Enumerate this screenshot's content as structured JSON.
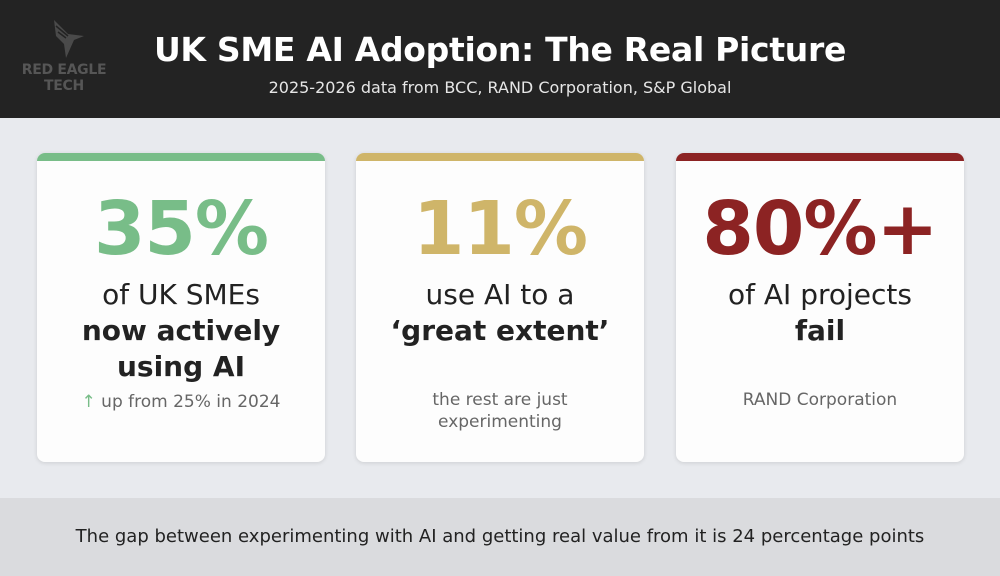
{
  "header": {
    "logo_text_1": "RED EAGLE",
    "logo_text_2": "TECH",
    "title": "UK SME AI Adoption: The Real Picture",
    "subtitle": "2025-2026 data from BCC, RAND Corporation, S&P Global"
  },
  "colors": {
    "green": "#78bd88",
    "gold": "#cfb569",
    "red": "#8c2323",
    "header_bg": "#232323"
  },
  "cards": [
    {
      "stat": "35%",
      "line1": "of UK SMEs",
      "line2a": "now actively",
      "line2b": "using AI",
      "icon": "arrow-up-icon",
      "note": "up from 25% in 2024"
    },
    {
      "stat": "11%",
      "line1": "use AI to a",
      "line2a": "‘great extent’",
      "note1": "the rest are just",
      "note2": "experimenting"
    },
    {
      "stat": "80%+",
      "line1": "of AI projects",
      "line2a": "fail",
      "note": "RAND Corporation"
    }
  ],
  "footer": {
    "text": "The gap between experimenting with AI and getting real value from it is 24 percentage points"
  }
}
